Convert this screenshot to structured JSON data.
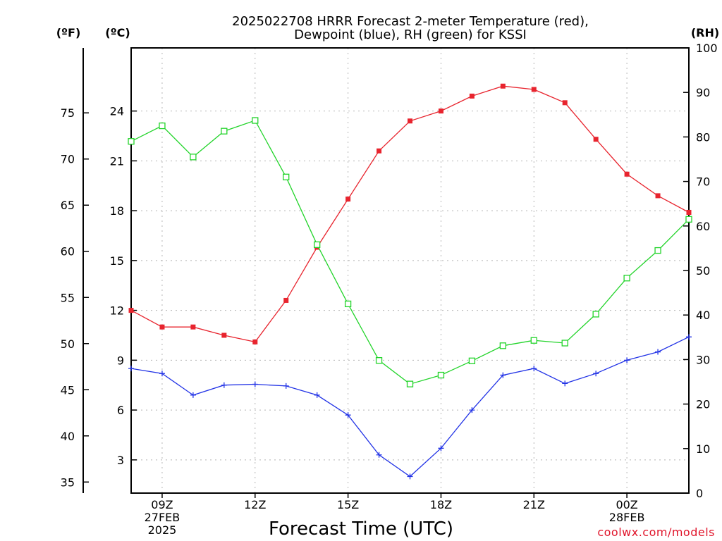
{
  "chart_data": {
    "type": "line",
    "title_line1": "2025022708 HRRR Forecast 2-meter Temperature (red),",
    "title_line2": "Dewpoint (blue), RH (green) for KSSI",
    "xlabel": "Forecast Time (UTC)",
    "credit": "coolwx.com/models",
    "unit_f": "(ºF)",
    "unit_c": "(ºC)",
    "unit_rh": "(RH)",
    "x_hours": [
      8,
      9,
      10,
      11,
      12,
      13,
      14,
      15,
      16,
      17,
      18,
      19,
      20,
      21,
      22,
      23,
      24,
      25,
      26
    ],
    "xlim": [
      8,
      26
    ],
    "x_ticks": [
      {
        "x": 9,
        "lines": [
          "09Z",
          "27FEB",
          "2025"
        ]
      },
      {
        "x": 12,
        "lines": [
          "12Z"
        ]
      },
      {
        "x": 15,
        "lines": [
          "15Z"
        ]
      },
      {
        "x": 18,
        "lines": [
          "18Z"
        ]
      },
      {
        "x": 21,
        "lines": [
          "21Z"
        ]
      },
      {
        "x": 24,
        "lines": [
          "00Z",
          "28FEB"
        ]
      }
    ],
    "celsius_axis": {
      "range": [
        1.0,
        27.8
      ],
      "ticks": [
        3,
        6,
        9,
        12,
        15,
        18,
        21,
        24
      ],
      "labels": [
        "3",
        "6",
        "9",
        "12",
        "15",
        "18",
        "21",
        "24"
      ]
    },
    "fahrenheit_axis": {
      "ticks": [
        35,
        40,
        45,
        50,
        55,
        60,
        65,
        70,
        75
      ],
      "labels": [
        "35",
        "40",
        "45",
        "50",
        "55",
        "60",
        "65",
        "70",
        "75"
      ]
    },
    "rh_axis": {
      "range": [
        0,
        100
      ],
      "ticks": [
        0,
        10,
        20,
        30,
        40,
        50,
        60,
        70,
        80,
        90,
        100
      ],
      "labels": [
        "0",
        "10",
        "20",
        "30",
        "40",
        "50",
        "60",
        "70",
        "80",
        "90",
        "100"
      ]
    },
    "grid": true,
    "series": [
      {
        "name": "Temperature",
        "axis": "celsius",
        "color": "#e8242e",
        "marker": "filled-square",
        "values": [
          12.0,
          11.0,
          11.0,
          10.5,
          10.1,
          12.6,
          15.8,
          18.7,
          21.6,
          23.4,
          24.0,
          24.9,
          25.5,
          25.3,
          24.5,
          22.3,
          20.2,
          18.9,
          17.9
        ]
      },
      {
        "name": "Dewpoint",
        "axis": "celsius",
        "color": "#2233e6",
        "marker": "plus",
        "values": [
          8.5,
          8.2,
          6.9,
          7.5,
          7.55,
          7.45,
          6.9,
          5.7,
          3.3,
          2.0,
          3.7,
          6.0,
          8.1,
          8.5,
          7.6,
          8.2,
          9.0,
          9.5,
          10.4
        ]
      },
      {
        "name": "RH",
        "axis": "rh",
        "color": "#22d42a",
        "marker": "open-square",
        "values": [
          79.0,
          82.5,
          75.5,
          81.3,
          83.7,
          71.0,
          55.8,
          42.5,
          29.8,
          24.5,
          26.5,
          29.7,
          33.1,
          34.3,
          33.7,
          40.2,
          48.3,
          54.5,
          61.5
        ]
      }
    ]
  }
}
